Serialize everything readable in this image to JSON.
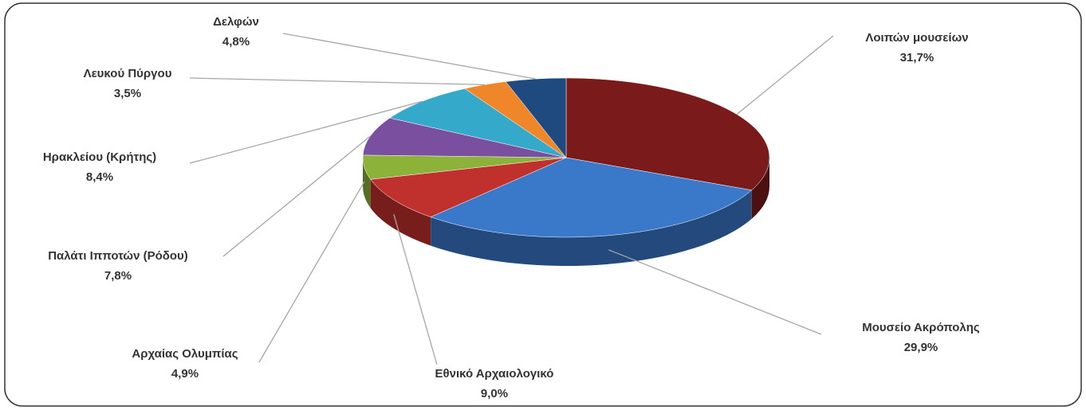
{
  "chart_data": {
    "type": "pie",
    "categories": [
      "Λοιπών μουσείων",
      "Μουσείο Ακρόπολης",
      "Εθνικό Αρχαιολογικό",
      "Αρχαίας Ολυμπίας",
      "Παλάτι Ιπποτών (Ρόδου)",
      "Ηρακλείου (Κρήτης)",
      "Λευκού Πύργου",
      "Δελφών"
    ],
    "values": [
      31.7,
      29.9,
      9.0,
      4.9,
      7.8,
      8.4,
      3.5,
      4.8
    ],
    "value_labels": [
      "31,7%",
      "29,9%",
      "9,0%",
      "4,9%",
      "7,8%",
      "8,4%",
      "3,5%",
      "4,8%"
    ],
    "colors": [
      "#7b1a1a",
      "#3a78c9",
      "#c0302d",
      "#8db23a",
      "#7a4fa0",
      "#35a9c9",
      "#f0862a",
      "#1f4a80"
    ]
  }
}
